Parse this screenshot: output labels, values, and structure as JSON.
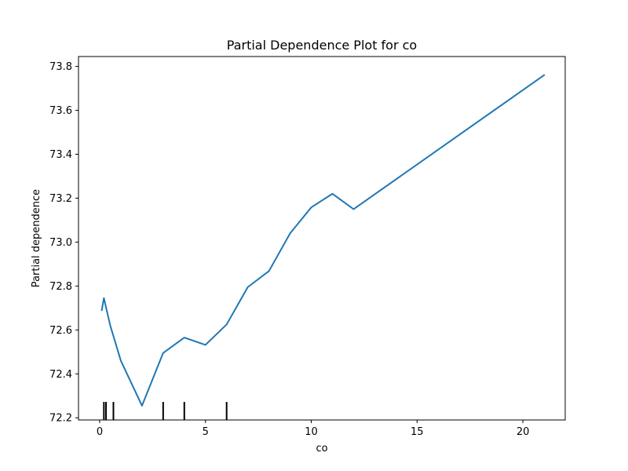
{
  "chart_data": {
    "type": "line",
    "title": "Partial Dependence Plot for co",
    "xlabel": "co",
    "ylabel": "Partial dependence",
    "xlim": [
      -1.0,
      22.0
    ],
    "ylim": [
      72.19,
      73.845
    ],
    "xticks": [
      0,
      5,
      10,
      15,
      20
    ],
    "yticks": [
      72.2,
      72.4,
      72.6,
      72.8,
      73.0,
      73.2,
      73.4,
      73.6,
      73.8
    ],
    "xtick_labels": [
      "0",
      "5",
      "10",
      "15",
      "20"
    ],
    "ytick_labels": [
      "72.2",
      "72.4",
      "72.6",
      "72.8",
      "73.0",
      "73.2",
      "73.4",
      "73.6",
      "73.8"
    ],
    "grid": false,
    "series": [
      {
        "color": "#1f77b4",
        "x": [
          0.1,
          0.2,
          0.5,
          1.0,
          2.0,
          3.0,
          4.0,
          5.0,
          6.0,
          7.0,
          8.0,
          9.0,
          10.0,
          11.0,
          12.0,
          21.0
        ],
        "y": [
          72.69,
          72.745,
          72.62,
          72.46,
          72.255,
          72.495,
          72.565,
          72.532,
          72.625,
          72.795,
          72.868,
          73.04,
          73.158,
          73.22,
          73.15,
          73.76
        ]
      }
    ],
    "rug": [
      0.2,
      0.3,
      0.65,
      3.0,
      4.0,
      6.0
    ]
  }
}
